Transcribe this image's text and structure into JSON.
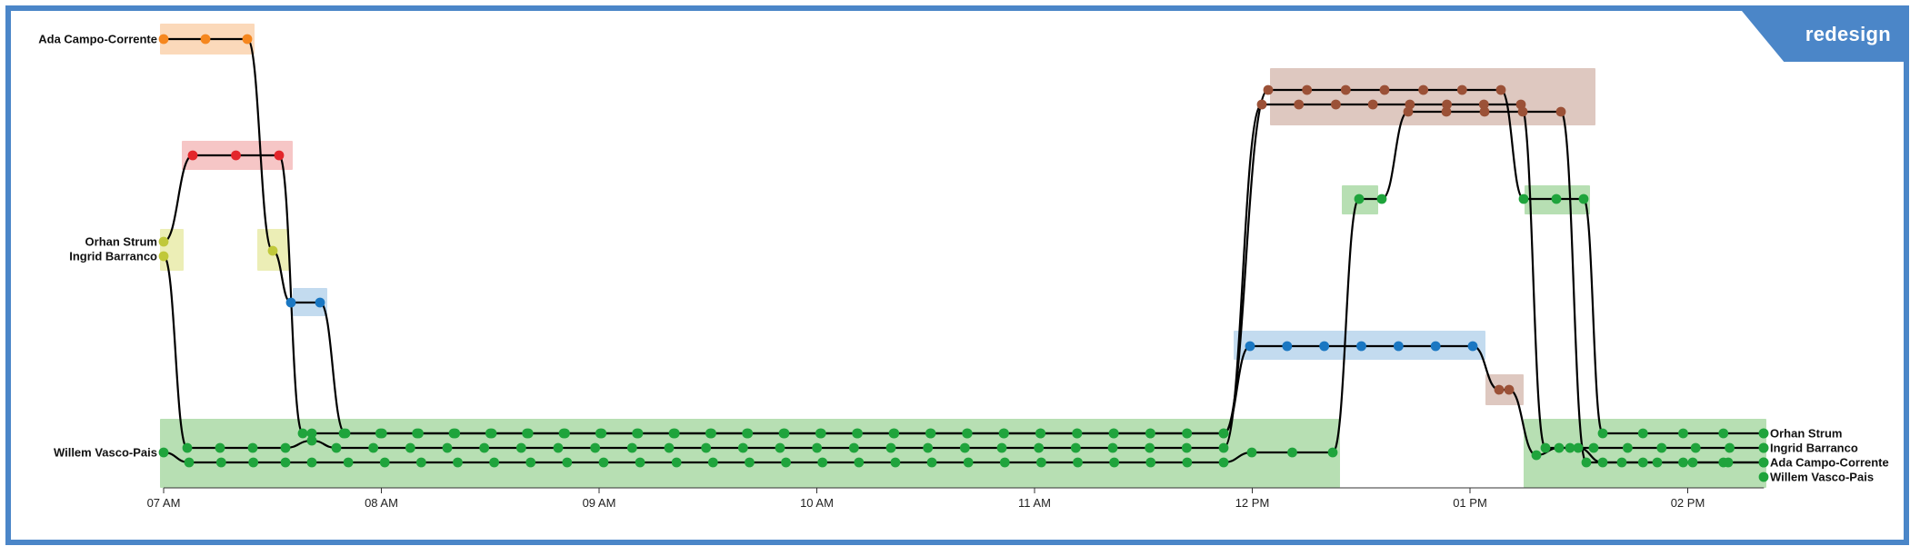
{
  "badge": {
    "label": "redesign"
  },
  "chart_data": {
    "type": "storyline",
    "title": "",
    "xlabel": "",
    "ylabel": "",
    "x_ticks": [
      "07 AM",
      "08 AM",
      "09 AM",
      "10 AM",
      "11 AM",
      "12 PM",
      "01 PM",
      "02 PM"
    ],
    "x_range_hours": [
      7.0,
      14.35
    ],
    "people": [
      "Ada Campo-Corrente",
      "Orhan Strum",
      "Ingrid Barranco",
      "Willem Vasco-Pais"
    ],
    "left_labels": {
      "Ada Campo-Corrente": "Ada Campo-Corrente",
      "Orhan Strum": "Orhan Strum",
      "Ingrid Barranco": "Ingrid Barranco",
      "Willem Vasco-Pais": "Willem Vasco-Pais"
    },
    "right_labels": [
      "Orhan Strum",
      "Ingrid Barranco",
      "Ada Campo-Corrente",
      "Willem Vasco-Pais"
    ],
    "location_colors": {
      "green": "#1fa43c",
      "orange": "#f5871f",
      "red": "#e3262b",
      "yellow": "#c0c83a",
      "blue": "#1a77c2",
      "brown": "#9b5137"
    },
    "events": [
      {
        "time": 7.0,
        "ada": "orange",
        "orhan": "yellow",
        "ingrid": "yellow",
        "willem": "green"
      },
      {
        "time": 7.5,
        "ada": "yellow",
        "orhan": "red",
        "ingrid": "red",
        "willem": "green"
      },
      {
        "time": 7.66,
        "ada": "blue",
        "orhan": "green",
        "ingrid": "green",
        "willem": "green"
      },
      {
        "time": 11.92,
        "ada": "green",
        "orhan": "green",
        "ingrid": "green",
        "willem": "blue"
      },
      {
        "time": 12.0,
        "ada": "blue",
        "orhan": "brown",
        "ingrid": "brown",
        "willem": "green"
      },
      {
        "time": 12.5,
        "ada": "green",
        "orhan": "brown",
        "ingrid": "brown",
        "willem": "blue"
      },
      {
        "time": 13.1,
        "ada": "brown",
        "orhan": "brown",
        "ingrid": "green",
        "willem": "brown"
      },
      {
        "time": 13.5,
        "ada": "green",
        "orhan": "green",
        "ingrid": "green",
        "willem": "green"
      },
      {
        "time": 14.33,
        "ada": "green",
        "orhan": "green",
        "ingrid": "green",
        "willem": "green"
      }
    ]
  }
}
